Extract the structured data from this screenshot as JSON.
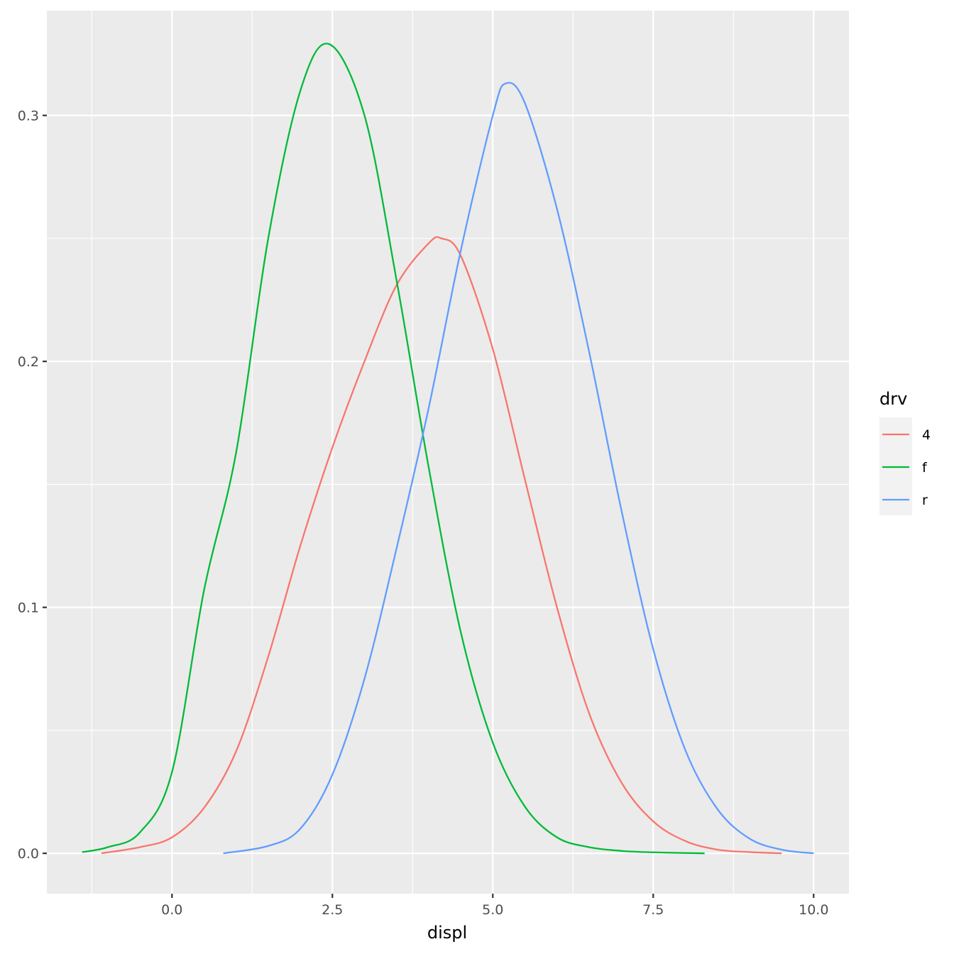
{
  "chart_data": {
    "type": "line",
    "title": "",
    "xlabel": "displ",
    "ylabel": "",
    "xlim": [
      -1.95,
      10.55
    ],
    "ylim": [
      -0.0164,
      0.3426
    ],
    "x_ticks": [
      0,
      2.5,
      5,
      7.5,
      10
    ],
    "x_tick_labels": [
      "0.0",
      "2.5",
      "5.0",
      "7.5",
      "10.0"
    ],
    "y_ticks": [
      0,
      0.1,
      0.2,
      0.3
    ],
    "y_tick_labels": [
      "0.0",
      "0.1",
      "0.2",
      "0.3"
    ],
    "grid": true,
    "legend": {
      "title": "drv",
      "position": "right"
    },
    "series": [
      {
        "name": "4",
        "color": "#F8766D",
        "x": [
          -1.1,
          -0.5,
          0.0,
          0.5,
          1.0,
          1.5,
          2.0,
          2.5,
          3.0,
          3.5,
          4.0,
          4.2,
          4.5,
          5.0,
          5.5,
          6.0,
          6.5,
          7.0,
          7.5,
          8.0,
          8.5,
          9.0,
          9.5
        ],
        "y": [
          0.0,
          0.0025,
          0.0065,
          0.0185,
          0.0415,
          0.08,
          0.125,
          0.165,
          0.2,
          0.231,
          0.248,
          0.25,
          0.243,
          0.205,
          0.152,
          0.1,
          0.057,
          0.029,
          0.013,
          0.005,
          0.0015,
          0.0005,
          0.0
        ]
      },
      {
        "name": "f",
        "color": "#00BA38",
        "x": [
          -1.4,
          -1.0,
          -0.5,
          0.0,
          0.5,
          1.0,
          1.5,
          2.0,
          2.45,
          3.0,
          3.5,
          4.0,
          4.5,
          5.0,
          5.5,
          6.0,
          6.5,
          7.0,
          7.5,
          8.3
        ],
        "y": [
          0.0005,
          0.0025,
          0.0085,
          0.033,
          0.107,
          0.163,
          0.25,
          0.31,
          0.329,
          0.3,
          0.233,
          0.157,
          0.09,
          0.045,
          0.019,
          0.0065,
          0.0025,
          0.001,
          0.0004,
          0.0
        ]
      },
      {
        "name": "r",
        "color": "#619CFF",
        "x": [
          0.8,
          1.5,
          2.0,
          2.5,
          3.0,
          3.5,
          4.0,
          4.5,
          5.0,
          5.2,
          5.5,
          6.0,
          6.5,
          7.0,
          7.5,
          8.0,
          8.5,
          9.0,
          9.5,
          10.0
        ],
        "y": [
          0.0,
          0.003,
          0.01,
          0.032,
          0.071,
          0.124,
          0.181,
          0.245,
          0.3,
          0.313,
          0.305,
          0.262,
          0.204,
          0.14,
          0.083,
          0.042,
          0.018,
          0.006,
          0.0015,
          0.0
        ]
      }
    ]
  }
}
